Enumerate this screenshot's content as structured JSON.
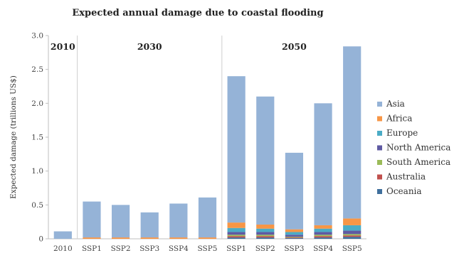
{
  "chart_data": {
    "type": "bar",
    "stacked": true,
    "title": "Expected annual damage due to coastal flooding",
    "ylabel": "Expected damage (trillions US$)",
    "xlabel": "",
    "ylim": [
      0,
      3.0
    ],
    "yticks": [
      "0",
      "0.5",
      "1.0",
      "1.5",
      "2.0",
      "2.5",
      "3.0"
    ],
    "grid": false,
    "legend_position": "right",
    "categories": [
      "2010",
      "SSP1",
      "SSP2",
      "SSP3",
      "SSP4",
      "SSP5",
      "SSP1",
      "SSP2",
      "SSP3",
      "SSP4",
      "SSP5"
    ],
    "period_groups": [
      {
        "label": "2010",
        "categories": [
          0
        ]
      },
      {
        "label": "2030",
        "categories": [
          1,
          2,
          3,
          4,
          5
        ]
      },
      {
        "label": "2050",
        "categories": [
          6,
          7,
          8,
          9,
          10
        ]
      }
    ],
    "series": [
      {
        "name": "Oceania",
        "color": "#3f6f9c",
        "values": [
          0.0,
          0.0,
          0.0,
          0.0,
          0.0,
          0.0,
          0.02,
          0.02,
          0.01,
          0.02,
          0.03
        ]
      },
      {
        "name": "Australia",
        "color": "#c0504d",
        "values": [
          0.0,
          0.0,
          0.0,
          0.0,
          0.0,
          0.0,
          0.02,
          0.02,
          0.01,
          0.02,
          0.02
        ]
      },
      {
        "name": "South America",
        "color": "#9bbb59",
        "values": [
          0.0,
          0.0,
          0.0,
          0.0,
          0.0,
          0.0,
          0.02,
          0.02,
          0.01,
          0.02,
          0.02
        ]
      },
      {
        "name": "North America",
        "color": "#5f5aa2",
        "values": [
          0.0,
          0.0,
          0.0,
          0.0,
          0.0,
          0.0,
          0.04,
          0.04,
          0.03,
          0.04,
          0.05
        ]
      },
      {
        "name": "Europe",
        "color": "#4bacc6",
        "values": [
          0.0,
          0.0,
          0.0,
          0.0,
          0.0,
          0.0,
          0.06,
          0.05,
          0.04,
          0.05,
          0.08
        ]
      },
      {
        "name": "Africa",
        "color": "#f79646",
        "values": [
          0.0,
          0.02,
          0.02,
          0.02,
          0.02,
          0.02,
          0.08,
          0.06,
          0.04,
          0.05,
          0.1
        ]
      },
      {
        "name": "Asia",
        "color": "#95b3d7",
        "values": [
          0.11,
          0.53,
          0.48,
          0.37,
          0.5,
          0.59,
          2.16,
          1.89,
          1.13,
          1.8,
          2.54
        ]
      }
    ],
    "legend_order": [
      "Asia",
      "Africa",
      "Europe",
      "North America",
      "South America",
      "Australia",
      "Oceania"
    ]
  }
}
